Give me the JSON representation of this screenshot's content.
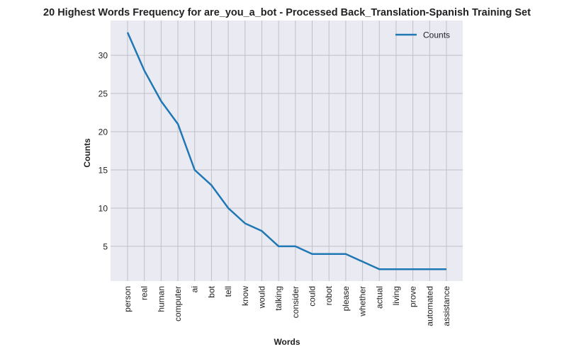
{
  "chart_data": {
    "type": "line",
    "title": "20 Highest Words Frequency for are_you_a_bot - Processed Back_Translation-Spanish Training Set",
    "xlabel": "Words",
    "ylabel": "Counts",
    "categories": [
      "person",
      "real",
      "human",
      "computer",
      "ai",
      "bot",
      "tell",
      "know",
      "would",
      "talking",
      "consider",
      "could",
      "robot",
      "please",
      "whether",
      "actual",
      "living",
      "prove",
      "automated",
      "assistance"
    ],
    "series": [
      {
        "name": "Counts",
        "values": [
          33,
          28,
          24,
          21,
          15,
          13,
          10,
          8,
          7,
          5,
          5,
          4,
          4,
          4,
          3,
          2,
          2,
          2,
          2,
          2
        ]
      }
    ],
    "yticks": [
      5,
      10,
      15,
      20,
      25,
      30
    ],
    "ylim": [
      0.45,
      34.55
    ],
    "grid": true,
    "legend": "top-right",
    "colors": {
      "line": "#1f77b4",
      "plot_bg": "#eaeaf2",
      "grid": "#c0c0c8"
    }
  }
}
